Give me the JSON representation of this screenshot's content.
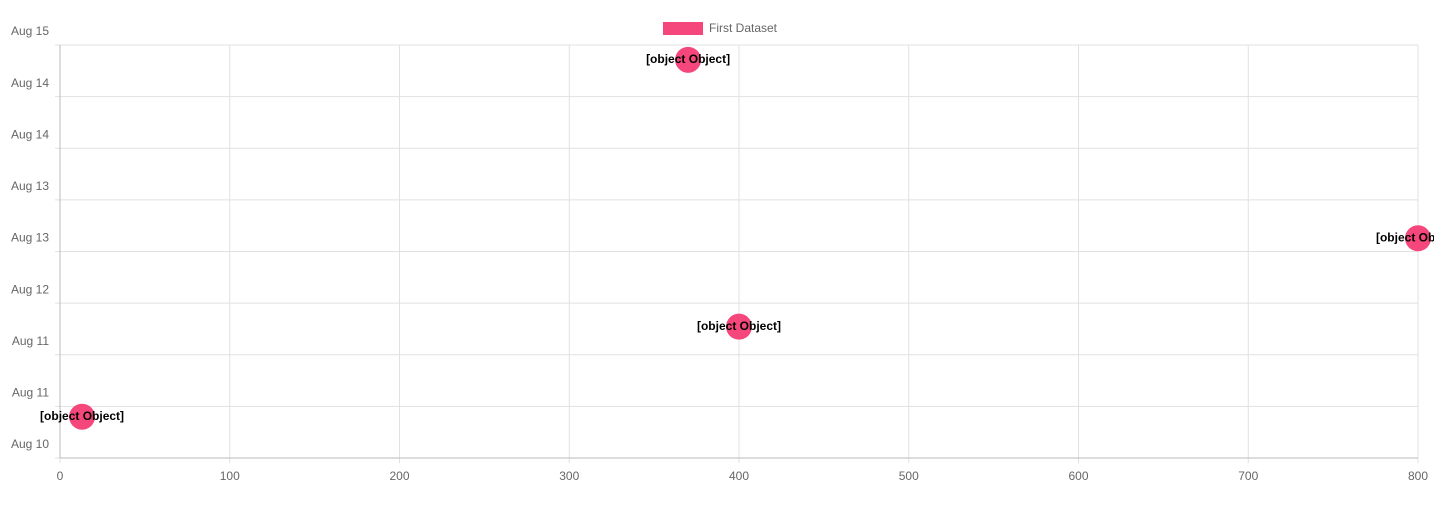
{
  "chart_data": {
    "type": "scatter",
    "x": [
      13,
      370,
      400,
      800
    ],
    "series": [
      {
        "name": "First Dataset",
        "color": "#f5477b",
        "values": [
          10.5,
          14.82,
          11.59,
          12.66
        ],
        "value_labels": [
          "[object Object]",
          "[object Object]",
          "[object Object]",
          "[object Object]"
        ]
      }
    ],
    "xlim": [
      0,
      800
    ],
    "xticks": [
      0,
      100,
      200,
      300,
      400,
      500,
      600,
      700,
      800
    ],
    "ylim": [
      10,
      15
    ],
    "yticks": [
      {
        "value": 10,
        "label": "Aug 10"
      },
      {
        "value": 10.625,
        "label": "Aug 11"
      },
      {
        "value": 11.25,
        "label": "Aug 11"
      },
      {
        "value": 11.875,
        "label": "Aug 12"
      },
      {
        "value": 12.5,
        "label": "Aug 13"
      },
      {
        "value": 13.125,
        "label": "Aug 13"
      },
      {
        "value": 13.75,
        "label": "Aug 14"
      },
      {
        "value": 14.375,
        "label": "Aug 14"
      },
      {
        "value": 15,
        "label": "Aug 15"
      }
    ],
    "grid": true,
    "legend": "top"
  }
}
